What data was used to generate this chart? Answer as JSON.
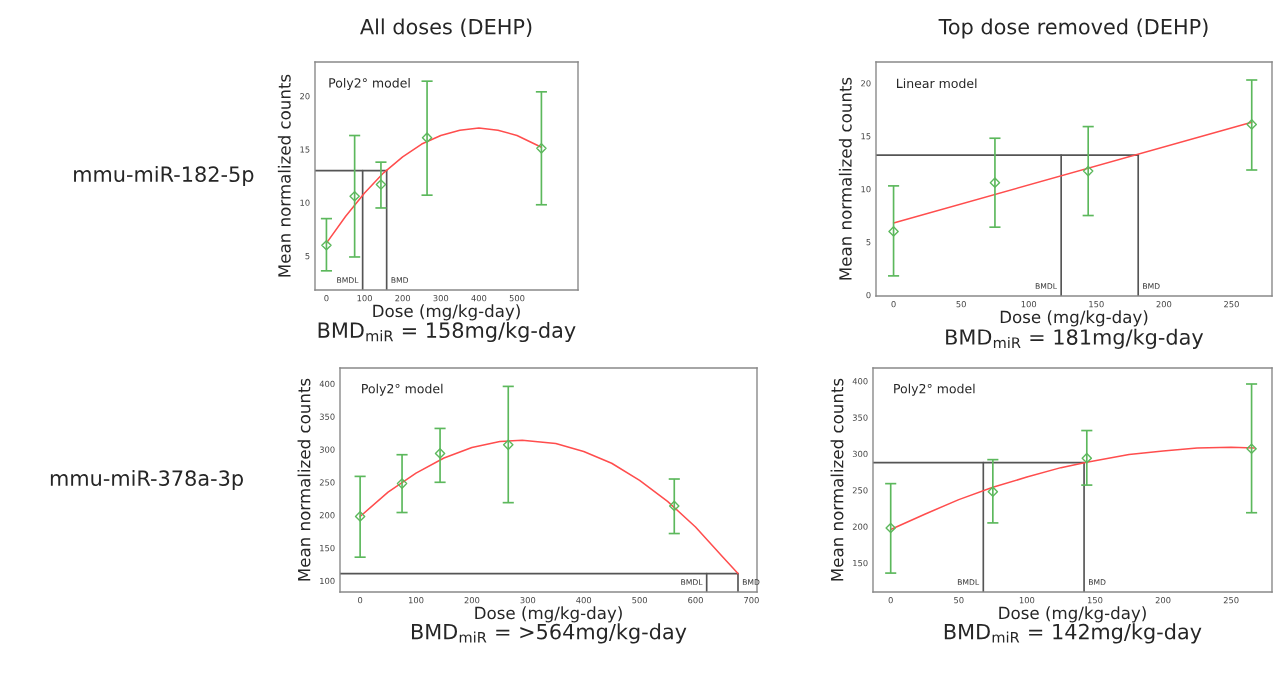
{
  "chart_data": [
    {
      "type": "scatter",
      "title": "All doses (DEHP)",
      "xlabel": "Dose (mg/kg-day)",
      "ylabel": "Mean normalized counts",
      "annotations": [
        "Poly2° model",
        "BMD$_{miR}$ = 158mg/kg-day",
        "mmu-miR-182-5p"
      ],
      "xlim": [
        -30,
        660
      ],
      "ylim": [
        1.8,
        23.2
      ],
      "xticks": [
        0,
        100,
        200,
        300,
        400,
        500
      ],
      "yticks": [
        5,
        10,
        15,
        20
      ],
      "grid": false,
      "legend": false,
      "ref_lines": [
        {
          "axis": "x",
          "value": 95,
          "label": "BMDL",
          "color": "#555555"
        },
        {
          "axis": "x",
          "value": 158,
          "label": "BMD",
          "color": "#555555"
        },
        {
          "axis": "y",
          "value": 13.0,
          "color": "#555555"
        }
      ],
      "series": [
        {
          "color": "#5cb85c",
          "marker": "diamond",
          "x": [
            0,
            74,
            143,
            264,
            564
          ],
          "values": [
            6.0,
            10.6,
            11.7,
            16.1,
            15.1
          ],
          "errors": [
            [
              3.6,
              8.5
            ],
            [
              4.9,
              16.3
            ],
            [
              9.5,
              13.8
            ],
            [
              10.7,
              21.4
            ],
            [
              9.8,
              20.4
            ]
          ]
        },
        {
          "type": "line",
          "color": "#ff4d4d",
          "x": [
            0,
            50,
            100,
            150,
            200,
            250,
            300,
            350,
            400,
            450,
            500,
            564
          ],
          "values": [
            6.2,
            8.7,
            10.9,
            12.8,
            14.3,
            15.5,
            16.3,
            16.8,
            17.0,
            16.8,
            16.3,
            15.2
          ]
        }
      ]
    },
    {
      "type": "scatter",
      "title": "Top dose removed (DEHP)",
      "xlabel": "Dose (mg/kg-day)",
      "ylabel": "Mean normalized counts",
      "annotations": [
        "Linear model",
        "BMD$_{miR}$ = 181mg/kg-day"
      ],
      "xlim": [
        -13,
        280
      ],
      "ylim": [
        -0.1,
        22
      ],
      "xticks": [
        0,
        50,
        100,
        150,
        200,
        250
      ],
      "yticks": [
        0,
        5,
        10,
        15,
        20
      ],
      "grid": false,
      "legend": false,
      "ref_lines": [
        {
          "axis": "x",
          "value": 124,
          "label": "BMDL",
          "color": "#555555"
        },
        {
          "axis": "x",
          "value": 181,
          "label": "BMD",
          "color": "#555555"
        },
        {
          "axis": "y",
          "value": 13.2,
          "color": "#555555"
        }
      ],
      "series": [
        {
          "color": "#5cb85c",
          "marker": "diamond",
          "x": [
            0,
            75,
            144,
            265
          ],
          "values": [
            6.0,
            10.6,
            11.7,
            16.1
          ],
          "errors": [
            [
              1.8,
              10.3
            ],
            [
              6.4,
              14.8
            ],
            [
              7.5,
              15.9
            ],
            [
              11.8,
              20.3
            ]
          ]
        },
        {
          "type": "line",
          "color": "#ff4d4d",
          "x": [
            0,
            265
          ],
          "values": [
            6.8,
            16.3
          ]
        }
      ]
    },
    {
      "type": "scatter",
      "xlabel": "Dose (mg/kg-day)",
      "ylabel": "Mean normalized counts",
      "annotations": [
        "Poly2° model",
        "BMD$_{miR}$ = >564mg/kg-day",
        "mmu-miR-378a-3p"
      ],
      "xlim": [
        -36,
        710
      ],
      "ylim": [
        83,
        424
      ],
      "xticks": [
        0,
        100,
        200,
        300,
        400,
        500,
        600,
        700
      ],
      "yticks": [
        100,
        150,
        200,
        250,
        300,
        350,
        400
      ],
      "grid": false,
      "legend": false,
      "ref_lines": [
        {
          "axis": "x",
          "value": 620,
          "label": "BMDL",
          "color": "#555555"
        },
        {
          "axis": "x",
          "value": 676,
          "label": "BMD",
          "color": "#555555"
        },
        {
          "axis": "y",
          "value": 111,
          "color": "#555555"
        }
      ],
      "series": [
        {
          "color": "#5cb85c",
          "marker": "diamond",
          "x": [
            0,
            75,
            143,
            265,
            562
          ],
          "values": [
            198,
            248,
            294,
            307,
            214
          ],
          "errors": [
            [
              136,
              259
            ],
            [
              204,
              292
            ],
            [
              250,
              332
            ],
            [
              219,
              396
            ],
            [
              172,
              255
            ]
          ]
        },
        {
          "type": "line",
          "color": "#ff4d4d",
          "x": [
            0,
            50,
            100,
            150,
            200,
            250,
            290,
            350,
            400,
            450,
            500,
            550,
            600,
            650,
            676
          ],
          "values": [
            198,
            235,
            264,
            287,
            303,
            312,
            314,
            309,
            297,
            279,
            253,
            221,
            182,
            135,
            111
          ]
        }
      ]
    },
    {
      "type": "scatter",
      "xlabel": "Dose (mg/kg-day)",
      "ylabel": "Mean normalized counts",
      "annotations": [
        "Poly2° model",
        "BMD$_{miR}$ = 142mg/kg-day"
      ],
      "xlim": [
        -13,
        280
      ],
      "ylim": [
        110,
        418
      ],
      "xticks": [
        0,
        50,
        100,
        150,
        200,
        250
      ],
      "yticks": [
        150,
        200,
        250,
        300,
        350,
        400
      ],
      "grid": false,
      "legend": false,
      "ref_lines": [
        {
          "axis": "x",
          "value": 68,
          "label": "BMDL",
          "color": "#555555"
        },
        {
          "axis": "x",
          "value": 142,
          "label": "BMD",
          "color": "#555555"
        },
        {
          "axis": "y",
          "value": 288,
          "color": "#555555"
        }
      ],
      "series": [
        {
          "color": "#5cb85c",
          "marker": "diamond",
          "x": [
            0,
            75,
            144,
            265
          ],
          "values": [
            198,
            248,
            294,
            307
          ],
          "errors": [
            [
              136,
              259
            ],
            [
              205,
              292
            ],
            [
              257,
              332
            ],
            [
              219,
              396
            ]
          ]
        },
        {
          "type": "line",
          "color": "#ff4d4d",
          "x": [
            0,
            25,
            50,
            75,
            100,
            125,
            143,
            175,
            200,
            225,
            250,
            267
          ],
          "values": [
            196,
            217,
            237,
            254,
            268,
            281,
            288,
            299,
            304,
            308,
            309,
            308
          ]
        }
      ]
    }
  ]
}
